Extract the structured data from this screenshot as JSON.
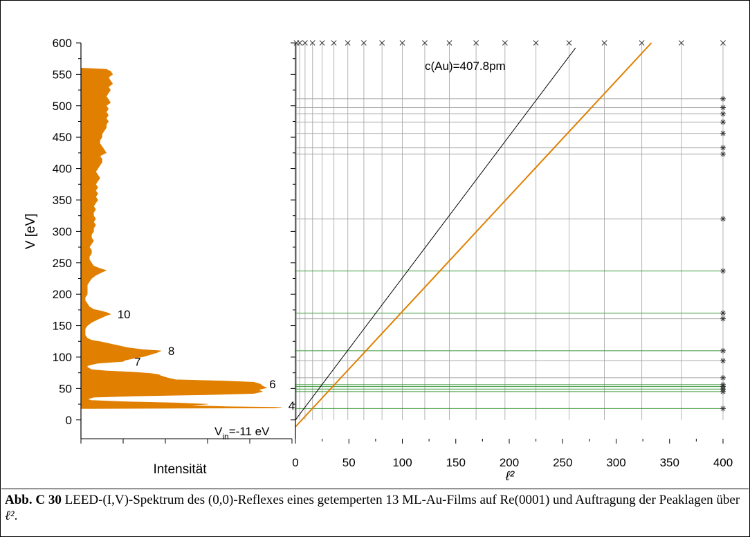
{
  "chart_data": [
    {
      "type": "area",
      "title": "",
      "xlabel": "Intensität",
      "ylabel": "V [eV]",
      "ylim": [
        -30,
        600
      ],
      "y_ticks": [
        0,
        50,
        100,
        150,
        200,
        250,
        300,
        350,
        400,
        450,
        500,
        550,
        600
      ],
      "grid": false,
      "fill_color": "#e07f00",
      "spectrum": [
        [
          18,
          0.06
        ],
        [
          19,
          0.92
        ],
        [
          20,
          0.95
        ],
        [
          21,
          0.7
        ],
        [
          23,
          0.5
        ],
        [
          25,
          0.6
        ],
        [
          27,
          0.45
        ],
        [
          29,
          0.2
        ],
        [
          31,
          0.05
        ],
        [
          33,
          0.03
        ],
        [
          36,
          0.06
        ],
        [
          38,
          0.25
        ],
        [
          40,
          0.6
        ],
        [
          42,
          0.82
        ],
        [
          45,
          0.86
        ],
        [
          48,
          0.84
        ],
        [
          51,
          0.88
        ],
        [
          54,
          0.86
        ],
        [
          57,
          0.85
        ],
        [
          60,
          0.82
        ],
        [
          62,
          0.68
        ],
        [
          64,
          0.45
        ],
        [
          66,
          0.42
        ],
        [
          68,
          0.4
        ],
        [
          70,
          0.38
        ],
        [
          72,
          0.37
        ],
        [
          74,
          0.33
        ],
        [
          76,
          0.25
        ],
        [
          78,
          0.12
        ],
        [
          80,
          0.05
        ],
        [
          82,
          0.04
        ],
        [
          84,
          0.03
        ],
        [
          86,
          0.03
        ],
        [
          88,
          0.05
        ],
        [
          90,
          0.08
        ],
        [
          93,
          0.2
        ],
        [
          95,
          0.21
        ],
        [
          98,
          0.25
        ],
        [
          101,
          0.3
        ],
        [
          104,
          0.33
        ],
        [
          107,
          0.36
        ],
        [
          110,
          0.38
        ],
        [
          112,
          0.29
        ],
        [
          115,
          0.22
        ],
        [
          118,
          0.18
        ],
        [
          121,
          0.14
        ],
        [
          124,
          0.1
        ],
        [
          127,
          0.05
        ],
        [
          130,
          0.03
        ],
        [
          135,
          0.02
        ],
        [
          140,
          0.02
        ],
        [
          145,
          0.02
        ],
        [
          150,
          0.03
        ],
        [
          155,
          0.05
        ],
        [
          160,
          0.08
        ],
        [
          163,
          0.1
        ],
        [
          166,
          0.12
        ],
        [
          168,
          0.14
        ],
        [
          170,
          0.13
        ],
        [
          173,
          0.1
        ],
        [
          176,
          0.06
        ],
        [
          180,
          0.04
        ],
        [
          185,
          0.03
        ],
        [
          190,
          0.02
        ],
        [
          195,
          0.02
        ],
        [
          200,
          0.03
        ],
        [
          205,
          0.03
        ],
        [
          210,
          0.03
        ],
        [
          215,
          0.03
        ],
        [
          220,
          0.04
        ],
        [
          225,
          0.05
        ],
        [
          230,
          0.07
        ],
        [
          235,
          0.1
        ],
        [
          238,
          0.12
        ],
        [
          241,
          0.09
        ],
        [
          245,
          0.06
        ],
        [
          250,
          0.05
        ],
        [
          255,
          0.04
        ],
        [
          260,
          0.04
        ],
        [
          265,
          0.05
        ],
        [
          270,
          0.05
        ],
        [
          275,
          0.04
        ],
        [
          280,
          0.05
        ],
        [
          285,
          0.06
        ],
        [
          290,
          0.05
        ],
        [
          295,
          0.05
        ],
        [
          300,
          0.06
        ],
        [
          305,
          0.06
        ],
        [
          310,
          0.07
        ],
        [
          315,
          0.06
        ],
        [
          320,
          0.07
        ],
        [
          325,
          0.06
        ],
        [
          330,
          0.06
        ],
        [
          335,
          0.07
        ],
        [
          340,
          0.06
        ],
        [
          345,
          0.07
        ],
        [
          350,
          0.08
        ],
        [
          355,
          0.07
        ],
        [
          360,
          0.08
        ],
        [
          365,
          0.07
        ],
        [
          370,
          0.08
        ],
        [
          375,
          0.07
        ],
        [
          380,
          0.08
        ],
        [
          385,
          0.09
        ],
        [
          390,
          0.08
        ],
        [
          395,
          0.07
        ],
        [
          400,
          0.08
        ],
        [
          405,
          0.09
        ],
        [
          410,
          0.1
        ],
        [
          415,
          0.1
        ],
        [
          420,
          0.09
        ],
        [
          425,
          0.12
        ],
        [
          430,
          0.11
        ],
        [
          435,
          0.1
        ],
        [
          440,
          0.09
        ],
        [
          445,
          0.09
        ],
        [
          450,
          0.1
        ],
        [
          455,
          0.1
        ],
        [
          460,
          0.11
        ],
        [
          465,
          0.12
        ],
        [
          470,
          0.12
        ],
        [
          475,
          0.13
        ],
        [
          480,
          0.12
        ],
        [
          485,
          0.13
        ],
        [
          490,
          0.12
        ],
        [
          495,
          0.13
        ],
        [
          500,
          0.12
        ],
        [
          505,
          0.14
        ],
        [
          510,
          0.13
        ],
        [
          515,
          0.12
        ],
        [
          520,
          0.13
        ],
        [
          525,
          0.14
        ],
        [
          530,
          0.13
        ],
        [
          535,
          0.15
        ],
        [
          540,
          0.14
        ],
        [
          545,
          0.13
        ],
        [
          550,
          0.15
        ],
        [
          555,
          0.14
        ],
        [
          558,
          0.12
        ],
        [
          560,
          0.0
        ]
      ],
      "peak_labels": [
        {
          "text": "10",
          "v": 168,
          "i": 0.14
        },
        {
          "text": "8",
          "v": 110,
          "i": 0.38
        },
        {
          "text": "7",
          "v": 93,
          "i": 0.22
        },
        {
          "text": "6",
          "v": 57,
          "i": 0.86
        },
        {
          "text": "4",
          "v": 23,
          "i": 0.95
        }
      ]
    },
    {
      "type": "scatter",
      "title": "",
      "xlabel": "ℓ²",
      "xlim": [
        0,
        400
      ],
      "ylim": [
        -30,
        600
      ],
      "x_ticks": [
        0,
        50,
        100,
        150,
        200,
        250,
        300,
        350,
        400
      ],
      "grid": true,
      "l_squared_lines": [
        1,
        4,
        9,
        16,
        25,
        36,
        49,
        64,
        81,
        100,
        121,
        144,
        169,
        196,
        225,
        256,
        289,
        324,
        361,
        400
      ],
      "peak_energies": [
        18,
        45,
        49,
        53,
        56,
        67,
        94,
        110,
        161,
        170,
        237,
        320,
        423,
        433,
        456,
        474,
        487,
        497,
        511
      ],
      "green_energies": [
        18,
        45,
        49,
        53,
        56,
        110,
        170,
        237
      ],
      "series": [
        {
          "name": "c(Au)=407.8pm",
          "color": "#000000",
          "points": [
            [
              0,
              0
            ],
            [
              262,
              592
            ]
          ]
        },
        {
          "name": "",
          "color": "#e07f00",
          "points": [
            [
              0,
              -11
            ],
            [
              333,
              600
            ]
          ]
        }
      ],
      "annotations": [
        {
          "text": "c(Au)=407.8pm"
        },
        {
          "text": "V",
          "subscript": "in",
          "suffix": "=-11 eV"
        }
      ]
    }
  ],
  "caption": {
    "label": "Abb. C 30",
    "text": " LEED-(I,V)-Spektrum des (0,0)-Reflexes eines getemperten 13 ML-Au-Films auf Re(0001) und Auftragung der Peaklagen über ",
    "symbol": "ℓ²",
    "end": "."
  }
}
